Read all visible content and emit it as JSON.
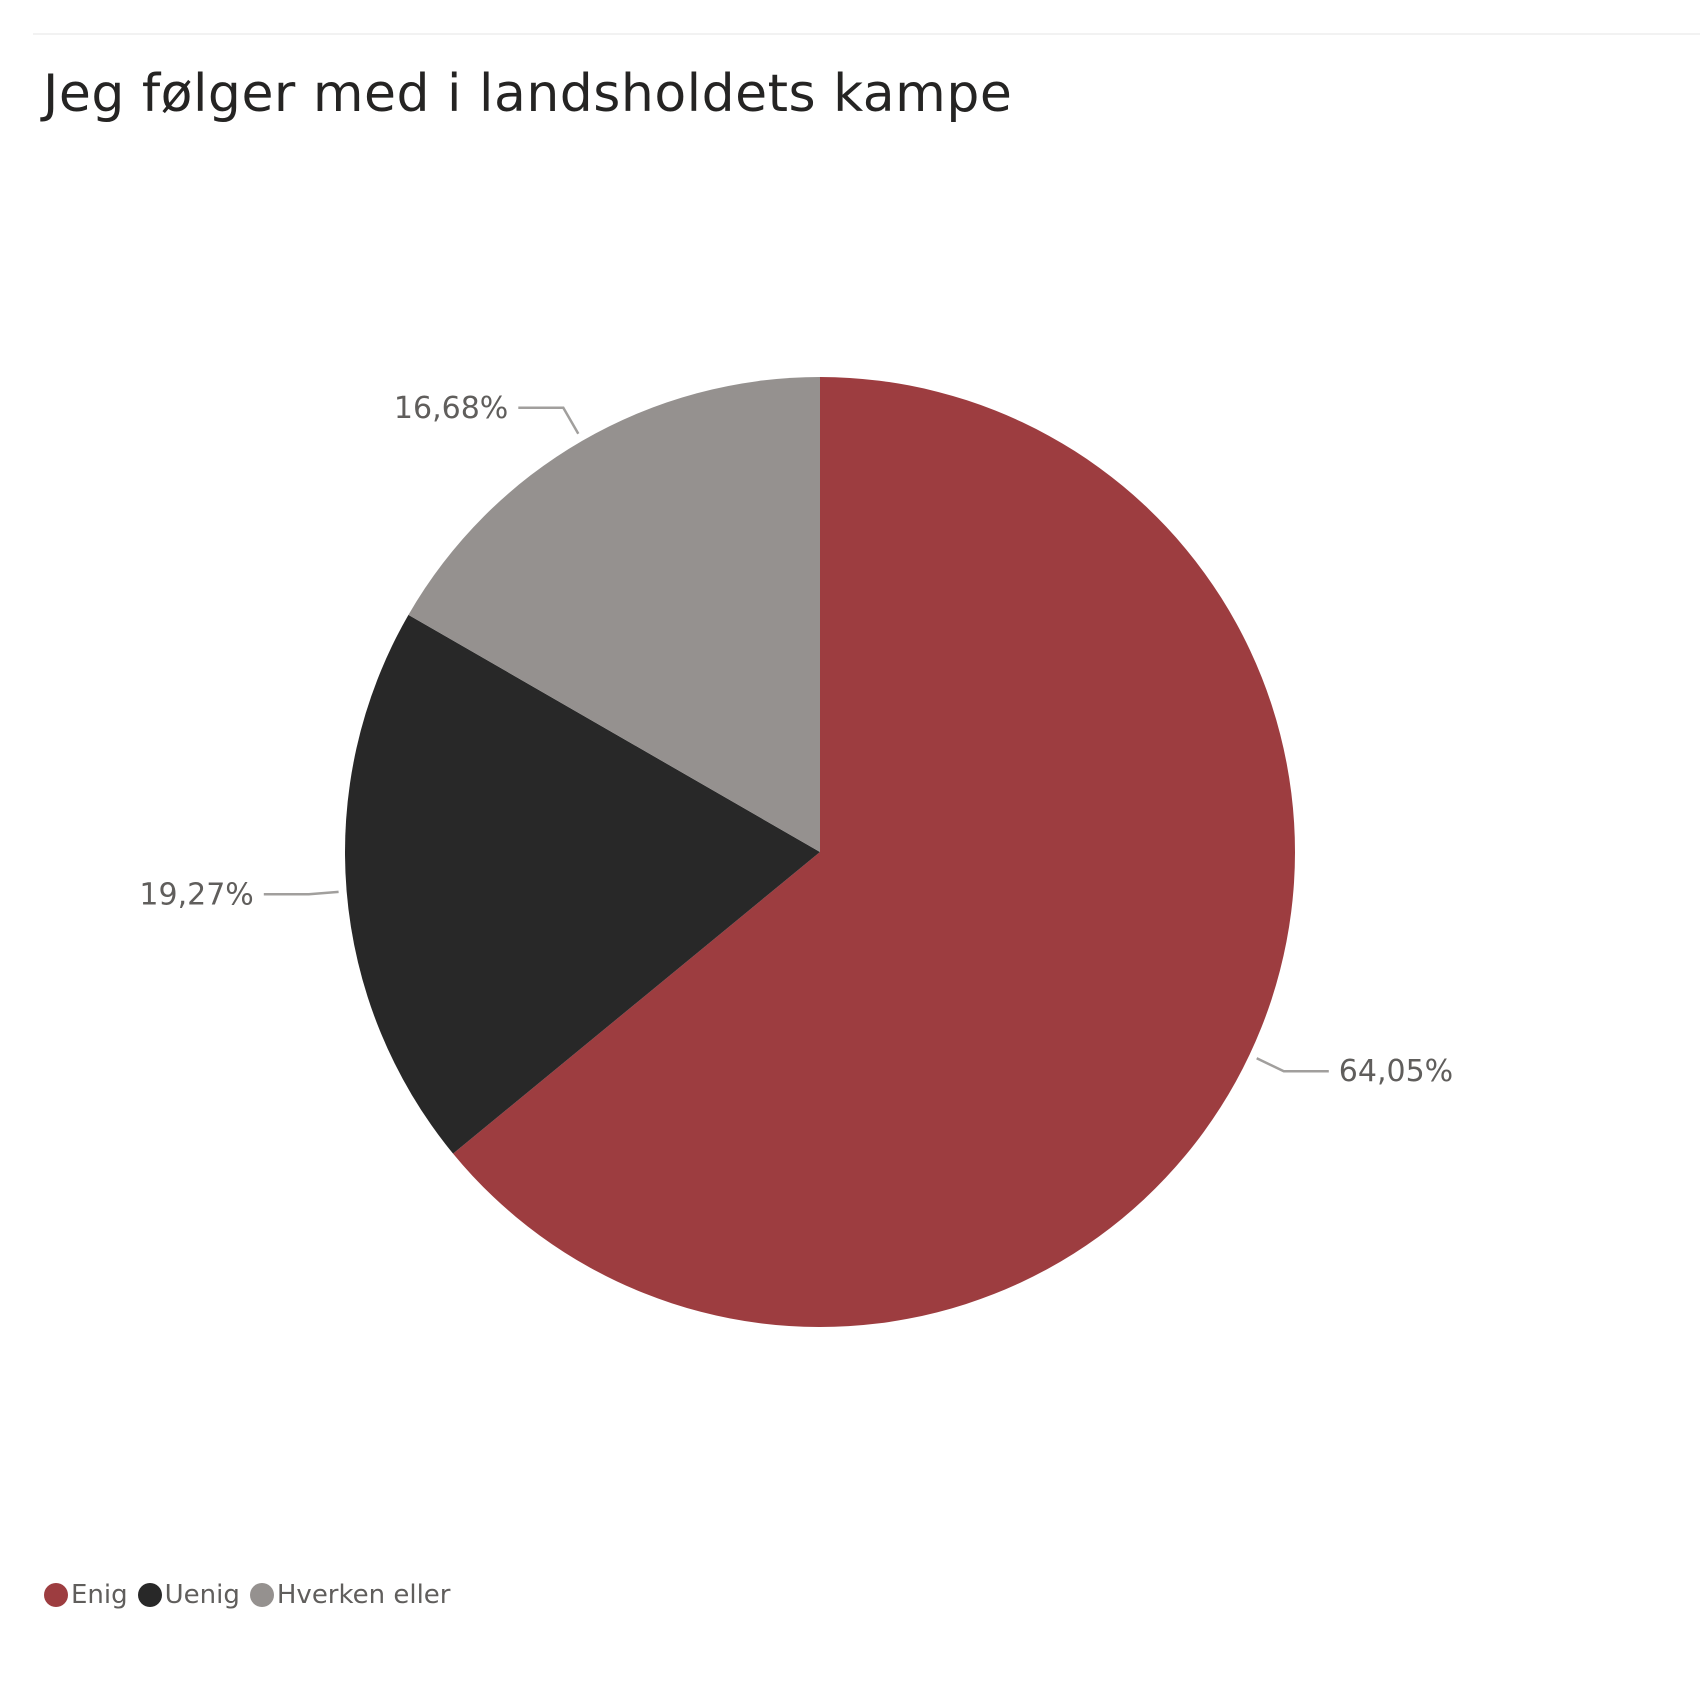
{
  "chart_data": {
    "type": "pie",
    "title": "Jeg følger med i landsholdets kampe",
    "slices": [
      {
        "label": "Enig",
        "value": 64.05,
        "display": "64,05%",
        "color": "#9d3d40"
      },
      {
        "label": "Uenig",
        "value": 19.27,
        "display": "19,27%",
        "color": "#282828"
      },
      {
        "label": "Hverken eller",
        "value": 16.68,
        "display": "16,68%",
        "color": "#95918f"
      }
    ],
    "start_angle": "12 o'clock",
    "direction": "clockwise",
    "data_labels": "outside with leader lines",
    "legend_position": "bottom-left"
  }
}
